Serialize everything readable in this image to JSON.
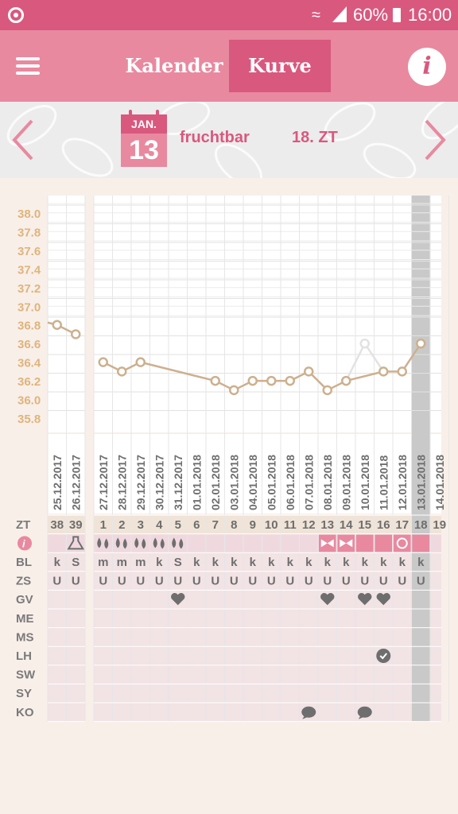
{
  "status_bar": {
    "battery": "60%",
    "time": "16:00"
  },
  "header": {
    "tabs": [
      "Kalender",
      "Kurve"
    ],
    "active_tab": "Kurve",
    "info_icon": "i"
  },
  "info_bar": {
    "month": "JAN.",
    "day": "13",
    "phase": "fruchtbar",
    "cycle_day": "18. ZT"
  },
  "colors": {
    "accent": "#d9587e",
    "accent_light": "#e8899f",
    "curve": "#cdb08f",
    "axis_text": "#e0b47c",
    "row_label": "#7a7a7a",
    "today": "#c9c9c9"
  },
  "grid_rows": [
    "ZT",
    "i",
    "BL",
    "ZS",
    "GV",
    "ME",
    "MS",
    "LH",
    "SW",
    "SY",
    "KO"
  ],
  "chart_data": {
    "type": "line",
    "y_ticks": [
      "38.0",
      "37.8",
      "37.6",
      "37.4",
      "37.2",
      "37.0",
      "36.8",
      "36.6",
      "36.4",
      "36.2",
      "36.0",
      "35.8"
    ],
    "ylim": [
      35.8,
      38.0
    ],
    "prev_cycle": {
      "dates": [
        "25.12.2017",
        "26.12.2017"
      ],
      "zt": [
        "38",
        "39"
      ],
      "temps": [
        36.8,
        36.7
      ],
      "bl": [
        "k",
        "S"
      ],
      "zs": [
        "U",
        "U"
      ],
      "icons": [
        "",
        "flask"
      ]
    },
    "cycle": {
      "dates": [
        "27.12.2017",
        "28.12.2017",
        "29.12.2017",
        "30.12.2017",
        "31.12.2017",
        "01.01.2018",
        "02.01.2018",
        "03.01.2018",
        "04.01.2018",
        "05.01.2018",
        "06.01.2018",
        "07.01.2018",
        "08.01.2018",
        "09.01.2018",
        "10.01.2018",
        "11.01.2018",
        "12.01.2018",
        "13.01.2018",
        "14.01.2018"
      ],
      "zt": [
        "1",
        "2",
        "3",
        "4",
        "5",
        "6",
        "7",
        "8",
        "9",
        "10",
        "11",
        "12",
        "13",
        "14",
        "15",
        "16",
        "17",
        "18",
        "19"
      ],
      "temps": [
        36.4,
        36.3,
        36.4,
        null,
        null,
        null,
        36.2,
        36.1,
        36.2,
        36.2,
        36.2,
        36.3,
        36.1,
        36.2,
        36.6,
        36.3,
        36.3,
        36.6,
        null
      ],
      "excluded": [
        false,
        false,
        false,
        false,
        false,
        false,
        false,
        false,
        false,
        false,
        false,
        false,
        false,
        false,
        true,
        false,
        false,
        false,
        false
      ],
      "bl": [
        "m",
        "m",
        "m",
        "k",
        "S",
        "k",
        "k",
        "k",
        "k",
        "k",
        "k",
        "k",
        "k",
        "k",
        "k",
        "k",
        "k",
        "k",
        ""
      ],
      "zs": [
        "U",
        "U",
        "U",
        "U",
        "U",
        "U",
        "U",
        "U",
        "U",
        "U",
        "U",
        "U",
        "U",
        "U",
        "U",
        "U",
        "U",
        "U",
        ""
      ],
      "icons": [
        "drops",
        "drops",
        "drops",
        "drops",
        "drops",
        "",
        "",
        "",
        "",
        "",
        "",
        "",
        "bow",
        "bow",
        "fertile",
        "fertile",
        "ovulation",
        "fertile",
        ""
      ],
      "gv": [
        false,
        false,
        false,
        false,
        true,
        false,
        false,
        false,
        false,
        false,
        false,
        false,
        true,
        false,
        true,
        true,
        false,
        false,
        false
      ],
      "lh": [
        false,
        false,
        false,
        false,
        false,
        false,
        false,
        false,
        false,
        false,
        false,
        false,
        false,
        false,
        false,
        true,
        false,
        false,
        false
      ],
      "ko": [
        false,
        false,
        false,
        false,
        false,
        false,
        false,
        false,
        false,
        false,
        false,
        true,
        false,
        false,
        true,
        false,
        false,
        false,
        false
      ],
      "today_index": 17
    }
  }
}
